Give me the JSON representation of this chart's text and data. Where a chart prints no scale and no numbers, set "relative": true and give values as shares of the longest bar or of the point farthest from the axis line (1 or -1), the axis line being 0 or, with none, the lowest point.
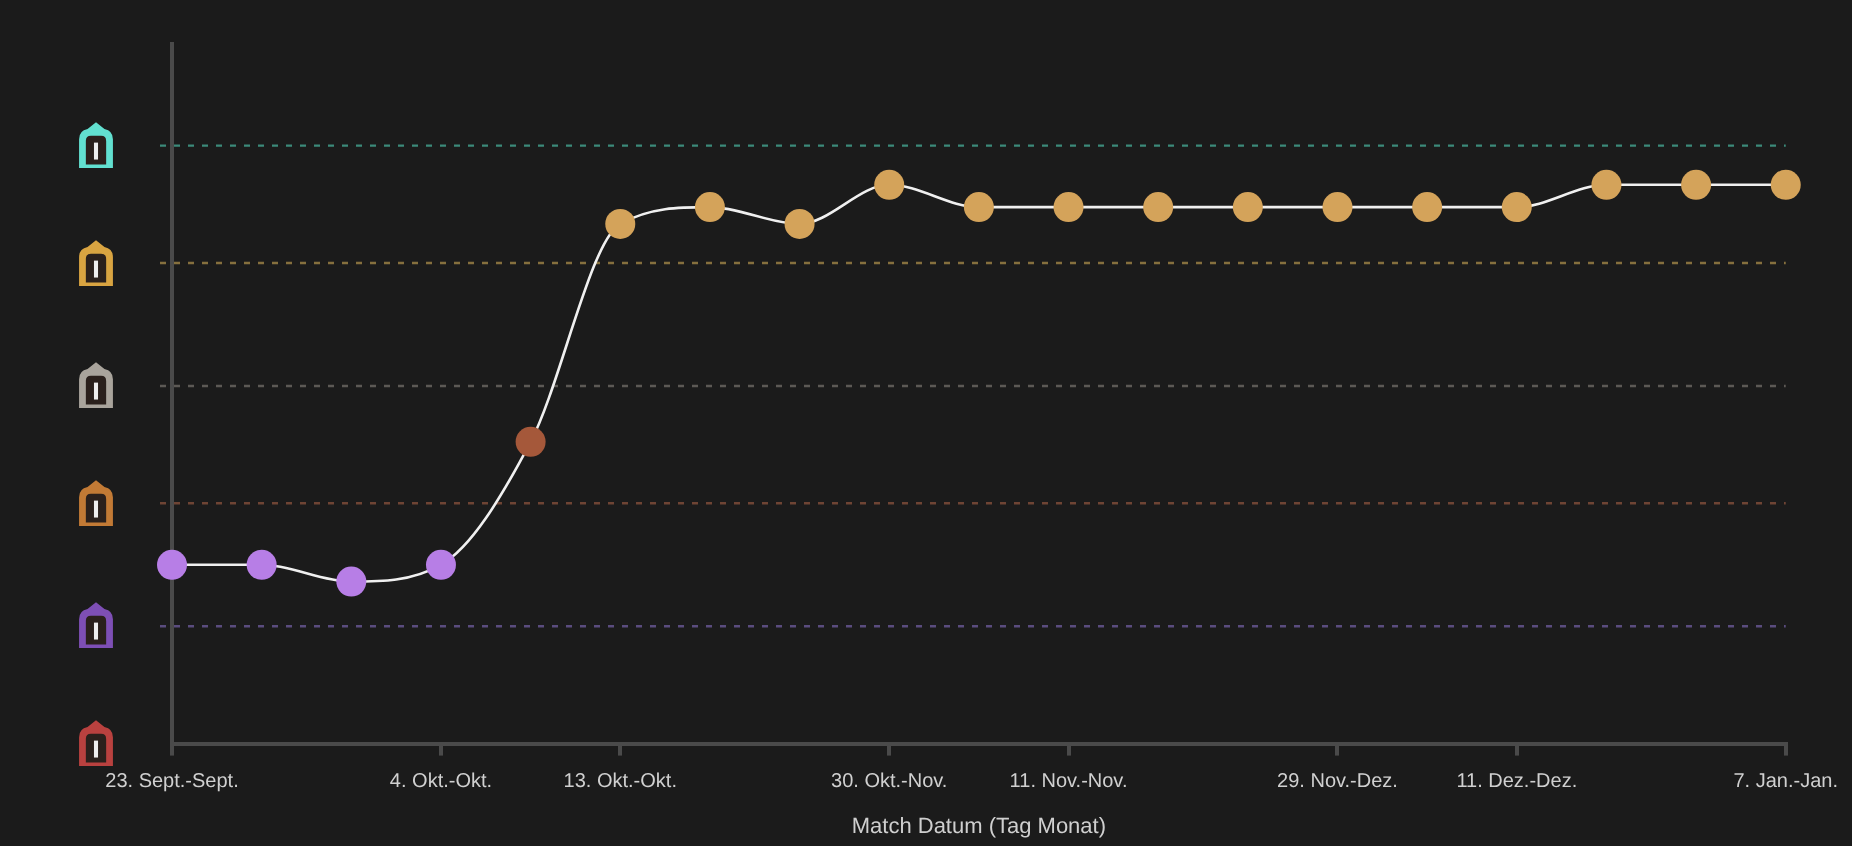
{
  "chart_data": {
    "type": "line",
    "relative": true,
    "xlabel": "Match Datum (Tag Monat)",
    "categories": [
      "23. Sept.-Sept.",
      null,
      null,
      "4. Okt.-Okt.",
      null,
      "13. Okt.-Okt.",
      null,
      null,
      "30. Okt.-Nov.",
      null,
      "11. Nov.-Nov.",
      null,
      null,
      "29. Nov.-Dez.",
      null,
      "11. Dez.-Dez.",
      null,
      null,
      "7. Jan.-Jan."
    ],
    "values": [
      0.32,
      0.32,
      0.29,
      0.32,
      0.54,
      0.93,
      0.96,
      0.93,
      1,
      0.96,
      0.96,
      0.96,
      0.96,
      0.96,
      0.96,
      0.96,
      1,
      1,
      1
    ],
    "color": "#f0f0f0",
    "colors": [
      "#b77ee6",
      "#b77ee6",
      "#b77ee6",
      "#b77ee6",
      "#a5583a",
      "#d4a35a",
      "#d4a35a",
      "#d4a35a",
      "#d4a35a",
      "#d4a35a",
      "#d4a35a",
      "#d4a35a",
      "#d4a35a",
      "#d4a35a",
      "#d4a35a",
      "#d4a35a",
      "#d4a35a",
      "#d4a35a",
      "#d4a35a"
    ],
    "marker": "circle",
    "line_style": "solid",
    "ref_lines": [
      {
        "axis": "y",
        "value": 0.21,
        "color": "#5a4c7e",
        "line_style": "dotted"
      },
      {
        "axis": "y",
        "value": 0.43,
        "color": "#6e4434",
        "line_style": "dotted"
      },
      {
        "axis": "y",
        "value": 0.64,
        "color": "#5c5955",
        "line_style": "dotted"
      },
      {
        "axis": "y",
        "value": 0.86,
        "color": "#86703e",
        "line_style": "dotted"
      },
      {
        "axis": "y",
        "value": 1.07,
        "color": "#3c8a7a",
        "line_style": "dotted"
      }
    ]
  }
}
